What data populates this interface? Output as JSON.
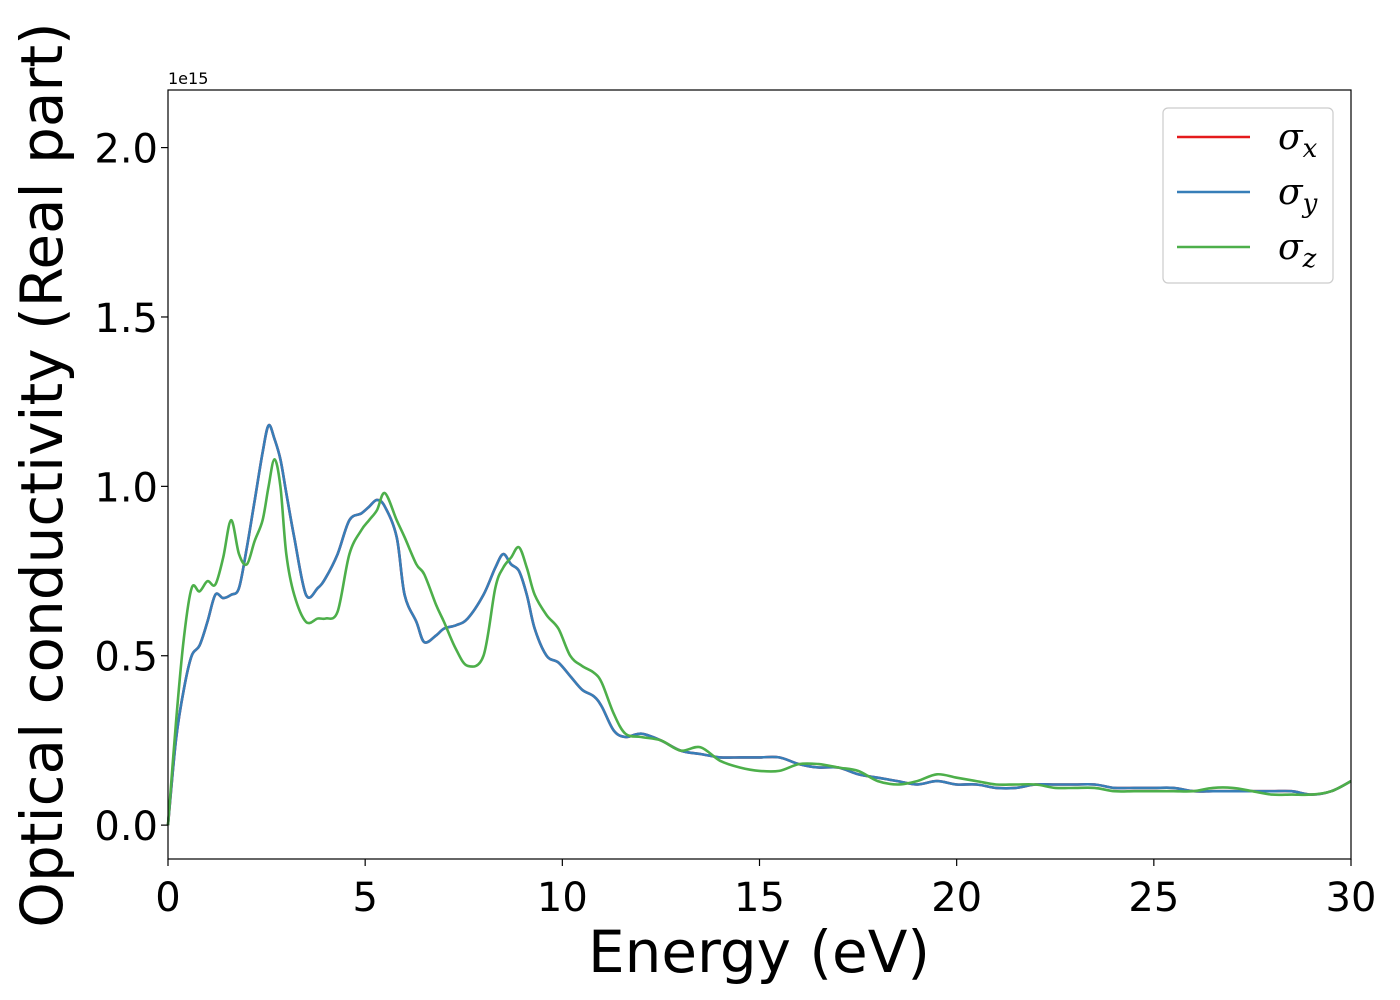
{
  "chart_data": {
    "type": "line",
    "title": "",
    "xlabel": "Energy (eV)",
    "ylabel": "Optical conductivity (Real part)",
    "y_offset_label": "1e15",
    "y_scale_factor": 1000000000000000.0,
    "xlim": [
      0,
      30
    ],
    "ylim": [
      -0.1,
      2.17
    ],
    "x_ticks": [
      0,
      5,
      10,
      15,
      20,
      25,
      30
    ],
    "y_ticks": [
      0.0,
      0.5,
      1.0,
      1.5,
      2.0
    ],
    "x_tick_labels": [
      "0",
      "5",
      "10",
      "15",
      "20",
      "25",
      "30"
    ],
    "y_tick_labels": [
      "0.0",
      "0.5",
      "1.0",
      "1.5",
      "2.0"
    ],
    "grid": false,
    "legend_position": "top-right",
    "series": [
      {
        "name": "σx",
        "base": "σ",
        "sub": "x",
        "color": "#e41a1c",
        "x": [
          0,
          0.2,
          0.4,
          0.6,
          0.8,
          1.0,
          1.2,
          1.4,
          1.6,
          1.8,
          2.0,
          2.2,
          2.4,
          2.55,
          2.7,
          2.85,
          3.0,
          3.2,
          3.5,
          3.8,
          4.0,
          4.3,
          4.6,
          4.9,
          5.1,
          5.3,
          5.5,
          5.8,
          6.0,
          6.3,
          6.5,
          6.8,
          7.0,
          7.3,
          7.6,
          8.0,
          8.3,
          8.5,
          8.7,
          8.9,
          9.1,
          9.3,
          9.6,
          9.9,
          10.2,
          10.5,
          10.8,
          11.0,
          11.3,
          11.6,
          12.0,
          12.5,
          13.0,
          13.5,
          14.0,
          14.5,
          15.0,
          15.5,
          16.0,
          16.5,
          17.0,
          17.5,
          18.0,
          18.5,
          19.0,
          19.5,
          20.0,
          20.5,
          21.0,
          21.5,
          22.0,
          22.5,
          23.0,
          23.5,
          24.0,
          24.5,
          25.0,
          25.5,
          26.0,
          26.5,
          27.0,
          27.5,
          28.0,
          28.5,
          29.0,
          29.5,
          30.0
        ],
        "y": [
          0,
          0.25,
          0.4,
          0.5,
          0.53,
          0.6,
          0.68,
          0.67,
          0.68,
          0.7,
          0.82,
          0.96,
          1.1,
          1.18,
          1.14,
          1.08,
          0.98,
          0.85,
          0.68,
          0.7,
          0.73,
          0.8,
          0.9,
          0.92,
          0.94,
          0.96,
          0.94,
          0.85,
          0.68,
          0.6,
          0.54,
          0.56,
          0.58,
          0.59,
          0.61,
          0.68,
          0.76,
          0.8,
          0.77,
          0.75,
          0.68,
          0.58,
          0.5,
          0.48,
          0.44,
          0.4,
          0.38,
          0.35,
          0.28,
          0.26,
          0.27,
          0.25,
          0.22,
          0.21,
          0.2,
          0.2,
          0.2,
          0.2,
          0.18,
          0.17,
          0.17,
          0.15,
          0.14,
          0.13,
          0.12,
          0.13,
          0.12,
          0.12,
          0.11,
          0.11,
          0.12,
          0.12,
          0.12,
          0.12,
          0.11,
          0.11,
          0.11,
          0.11,
          0.1,
          0.1,
          0.1,
          0.1,
          0.1,
          0.1,
          0.09,
          0.1,
          0.13
        ]
      },
      {
        "name": "σy",
        "base": "σ",
        "sub": "y",
        "color": "#377eb8",
        "x": [
          0,
          0.2,
          0.4,
          0.6,
          0.8,
          1.0,
          1.2,
          1.4,
          1.6,
          1.8,
          2.0,
          2.2,
          2.4,
          2.55,
          2.7,
          2.85,
          3.0,
          3.2,
          3.5,
          3.8,
          4.0,
          4.3,
          4.6,
          4.9,
          5.1,
          5.3,
          5.5,
          5.8,
          6.0,
          6.3,
          6.5,
          6.8,
          7.0,
          7.3,
          7.6,
          8.0,
          8.3,
          8.5,
          8.7,
          8.9,
          9.1,
          9.3,
          9.6,
          9.9,
          10.2,
          10.5,
          10.8,
          11.0,
          11.3,
          11.6,
          12.0,
          12.5,
          13.0,
          13.5,
          14.0,
          14.5,
          15.0,
          15.5,
          16.0,
          16.5,
          17.0,
          17.5,
          18.0,
          18.5,
          19.0,
          19.5,
          20.0,
          20.5,
          21.0,
          21.5,
          22.0,
          22.5,
          23.0,
          23.5,
          24.0,
          24.5,
          25.0,
          25.5,
          26.0,
          26.5,
          27.0,
          27.5,
          28.0,
          28.5,
          29.0,
          29.5,
          30.0
        ],
        "y": [
          0,
          0.25,
          0.4,
          0.5,
          0.53,
          0.6,
          0.68,
          0.67,
          0.68,
          0.7,
          0.82,
          0.96,
          1.1,
          1.18,
          1.14,
          1.08,
          0.98,
          0.85,
          0.68,
          0.7,
          0.73,
          0.8,
          0.9,
          0.92,
          0.94,
          0.96,
          0.94,
          0.85,
          0.68,
          0.6,
          0.54,
          0.56,
          0.58,
          0.59,
          0.61,
          0.68,
          0.76,
          0.8,
          0.77,
          0.75,
          0.68,
          0.58,
          0.5,
          0.48,
          0.44,
          0.4,
          0.38,
          0.35,
          0.28,
          0.26,
          0.27,
          0.25,
          0.22,
          0.21,
          0.2,
          0.2,
          0.2,
          0.2,
          0.18,
          0.17,
          0.17,
          0.15,
          0.14,
          0.13,
          0.12,
          0.13,
          0.12,
          0.12,
          0.11,
          0.11,
          0.12,
          0.12,
          0.12,
          0.12,
          0.11,
          0.11,
          0.11,
          0.11,
          0.1,
          0.1,
          0.1,
          0.1,
          0.1,
          0.1,
          0.09,
          0.1,
          0.13
        ]
      },
      {
        "name": "σz",
        "base": "σ",
        "sub": "z",
        "color": "#4daf4a",
        "x": [
          0,
          0.2,
          0.4,
          0.6,
          0.8,
          1.0,
          1.2,
          1.4,
          1.6,
          1.8,
          2.0,
          2.2,
          2.4,
          2.55,
          2.7,
          2.85,
          3.0,
          3.2,
          3.5,
          3.8,
          4.0,
          4.3,
          4.6,
          4.9,
          5.1,
          5.3,
          5.5,
          5.8,
          6.0,
          6.3,
          6.5,
          6.8,
          7.0,
          7.3,
          7.6,
          8.0,
          8.3,
          8.5,
          8.7,
          8.9,
          9.1,
          9.3,
          9.6,
          9.9,
          10.2,
          10.5,
          10.8,
          11.0,
          11.3,
          11.6,
          12.0,
          12.5,
          13.0,
          13.5,
          14.0,
          14.5,
          15.0,
          15.5,
          16.0,
          16.5,
          17.0,
          17.5,
          18.0,
          18.5,
          19.0,
          19.5,
          20.0,
          20.5,
          21.0,
          21.5,
          22.0,
          22.5,
          23.0,
          23.5,
          24.0,
          24.5,
          25.0,
          25.5,
          26.0,
          26.5,
          27.0,
          27.5,
          28.0,
          28.5,
          29.0,
          29.5,
          30.0
        ],
        "y": [
          0,
          0.3,
          0.55,
          0.7,
          0.69,
          0.72,
          0.71,
          0.79,
          0.9,
          0.8,
          0.77,
          0.84,
          0.9,
          1.0,
          1.08,
          1.0,
          0.8,
          0.68,
          0.6,
          0.61,
          0.61,
          0.63,
          0.8,
          0.87,
          0.9,
          0.93,
          0.98,
          0.9,
          0.85,
          0.77,
          0.74,
          0.65,
          0.6,
          0.52,
          0.47,
          0.5,
          0.7,
          0.76,
          0.79,
          0.82,
          0.76,
          0.68,
          0.62,
          0.58,
          0.5,
          0.47,
          0.45,
          0.42,
          0.33,
          0.27,
          0.26,
          0.25,
          0.22,
          0.23,
          0.19,
          0.17,
          0.16,
          0.16,
          0.18,
          0.18,
          0.17,
          0.16,
          0.13,
          0.12,
          0.13,
          0.15,
          0.14,
          0.13,
          0.12,
          0.12,
          0.12,
          0.11,
          0.11,
          0.11,
          0.1,
          0.1,
          0.1,
          0.1,
          0.1,
          0.11,
          0.11,
          0.1,
          0.09,
          0.09,
          0.09,
          0.1,
          0.13
        ]
      }
    ]
  }
}
